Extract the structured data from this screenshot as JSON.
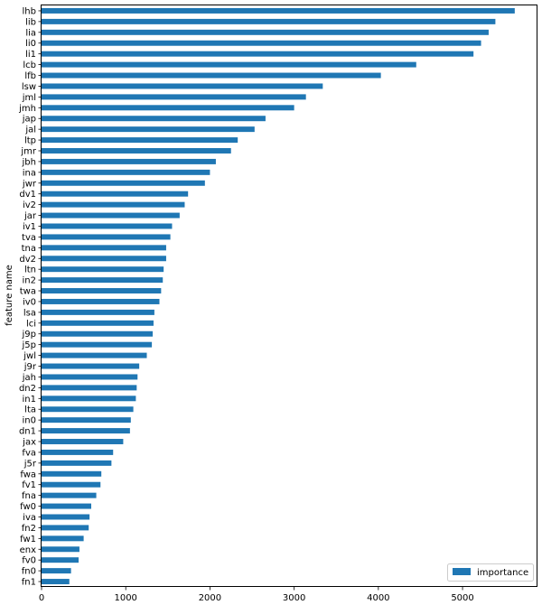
{
  "chart_data": {
    "type": "bar",
    "orientation": "horizontal",
    "categories": [
      "lhb",
      "lib",
      "lia",
      "li0",
      "li1",
      "lcb",
      "lfb",
      "lsw",
      "jml",
      "jmh",
      "jap",
      "jal",
      "ltp",
      "jmr",
      "jbh",
      "ina",
      "jwr",
      "dv1",
      "iv2",
      "jar",
      "iv1",
      "tva",
      "tna",
      "dv2",
      "ltn",
      "in2",
      "twa",
      "iv0",
      "lsa",
      "lci",
      "j9p",
      "j5p",
      "jwl",
      "j9r",
      "jah",
      "dn2",
      "in1",
      "lta",
      "in0",
      "dn1",
      "jax",
      "fva",
      "j5r",
      "fwa",
      "fv1",
      "fna",
      "fw0",
      "iva",
      "fn2",
      "fw1",
      "enx",
      "fv0",
      "fn0",
      "fn1"
    ],
    "series": [
      {
        "name": "importance",
        "color": "#1f77b4",
        "values": [
          5620,
          5390,
          5310,
          5220,
          5130,
          4450,
          4030,
          3340,
          3140,
          3000,
          2660,
          2530,
          2330,
          2250,
          2070,
          2000,
          1940,
          1740,
          1700,
          1640,
          1550,
          1530,
          1480,
          1480,
          1450,
          1440,
          1420,
          1400,
          1340,
          1330,
          1320,
          1310,
          1250,
          1160,
          1140,
          1130,
          1120,
          1090,
          1060,
          1050,
          970,
          850,
          830,
          710,
          700,
          650,
          590,
          570,
          560,
          500,
          450,
          440,
          350,
          330
        ]
      }
    ],
    "ylabel": "feature name",
    "xlim": [
      0,
      5890
    ],
    "xticks": [
      0,
      1000,
      2000,
      3000,
      4000,
      5000
    ],
    "legend": {
      "position": "lower-right",
      "label": "importance"
    },
    "grid": false
  }
}
